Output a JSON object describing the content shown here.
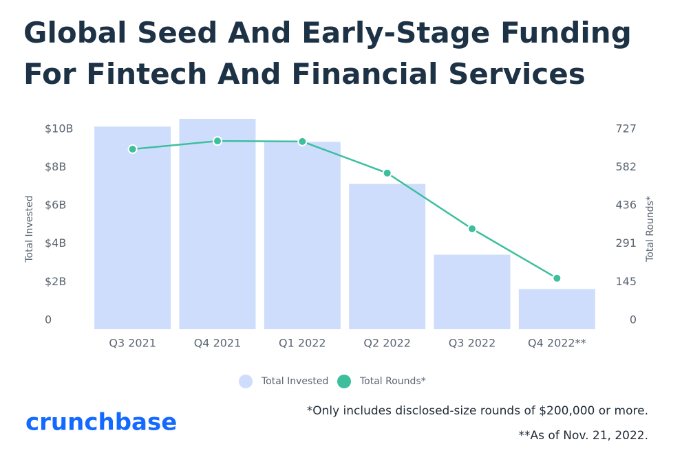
{
  "chart_data": {
    "type": "bar",
    "title_lines": [
      "Global Seed And Early-Stage Funding",
      "For Fintech And Financial Services"
    ],
    "y_label": "Total Invested",
    "y2_label": "Total Rounds*",
    "categories": [
      "Q3 2021",
      "Q4 2021",
      "Q1 2022",
      "Q2 2022",
      "Q3 2022",
      "Q4 2022**"
    ],
    "series": [
      {
        "name": "Total Invested",
        "type": "bar",
        "color": "#cfddfd",
        "values": [
          10.6,
          11.0,
          9.8,
          7.6,
          3.9,
          2.1
        ]
      },
      {
        "name": "Total Rounds*",
        "type": "line",
        "axis": "y2",
        "color": "#3dbf9d",
        "values": [
          685,
          716,
          714,
          594,
          382,
          194
        ]
      }
    ],
    "ylim": [
      0,
      11
    ],
    "yticks": [
      0,
      {
        "value": 2,
        "label": "$2B"
      },
      {
        "value": 4,
        "label": "$4B"
      },
      {
        "value": 6,
        "label": "$6B"
      },
      {
        "value": 8,
        "label": "$8B"
      },
      {
        "value": 10,
        "label": "$10B"
      }
    ],
    "y2lim": [
      0,
      800
    ],
    "y2ticks": [
      0,
      145,
      291,
      436,
      582,
      727
    ],
    "footnotes": [
      "*Only includes disclosed-size rounds of $200,000 or more.",
      "**As of Nov. 21, 2022."
    ],
    "brand": "crunchbase"
  }
}
